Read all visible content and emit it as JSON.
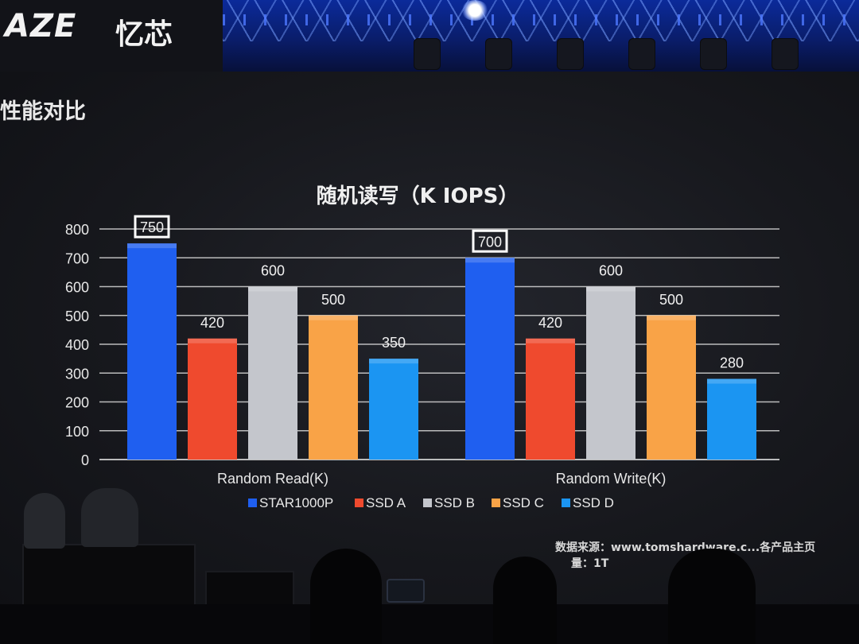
{
  "brand": {
    "logo": "AZE",
    "name_cn": "忆芯"
  },
  "slide": {
    "heading": "性能对比"
  },
  "source_note": {
    "line1": "数据来源：www.tomshardware.c...各产品主页",
    "line2": "量：1T"
  },
  "colors": {
    "STAR1000P": "#1f5ff0",
    "SSD A": "#ef4a2e",
    "SSD B": "#c4c6cc",
    "SSD C": "#f9a347",
    "SSD D": "#1b95f2",
    "grid": "#d8d8d8",
    "text": "#e8e8e8"
  },
  "chart_data": {
    "type": "bar",
    "title": "随机读写（K IOPS）",
    "categories": [
      "Random Read(K)",
      "Random Write(K)"
    ],
    "series": [
      {
        "name": "STAR1000P",
        "values": [
          750,
          700
        ]
      },
      {
        "name": "SSD A",
        "values": [
          420,
          420
        ]
      },
      {
        "name": "SSD B",
        "values": [
          600,
          600
        ]
      },
      {
        "name": "SSD C",
        "values": [
          500,
          500
        ]
      },
      {
        "name": "SSD D",
        "values": [
          350,
          280
        ]
      }
    ],
    "highlighted_series": "STAR1000P",
    "yticks": [
      0,
      100,
      200,
      300,
      400,
      500,
      600,
      700,
      800
    ],
    "ylim": [
      0,
      800
    ],
    "grid": true,
    "legend_position": "bottom"
  }
}
